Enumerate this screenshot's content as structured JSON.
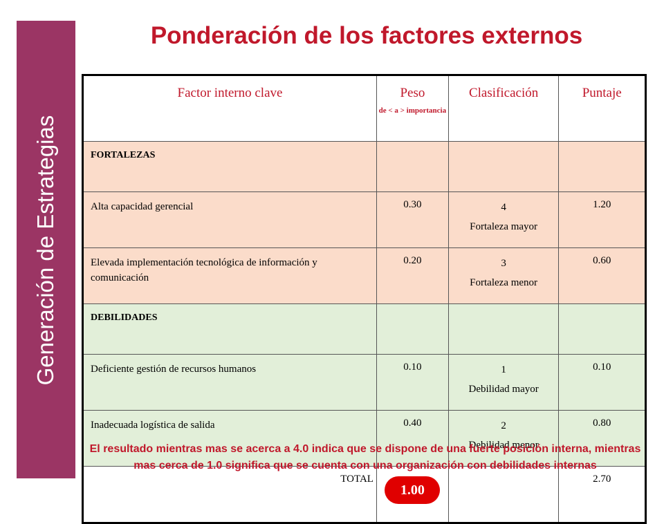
{
  "sidebar": {
    "text": "Generación de Estrategias"
  },
  "title": "Ponderación de los factores externos",
  "table": {
    "headers": {
      "factor": "Factor interno clave",
      "peso": "Peso",
      "peso_sub": "de < a > importancia",
      "clasificacion": "Clasificación",
      "puntaje": "Puntaje"
    },
    "fortalezas_label": "FORTALEZAS",
    "fortalezas": [
      {
        "factor": "Alta capacidad gerencial",
        "peso": "0.30",
        "clas_num": "4",
        "clas_text": "Fortaleza mayor",
        "puntaje": "1.20"
      },
      {
        "factor": "Elevada implementación tecnológica de información y comunicación",
        "peso": "0.20",
        "clas_num": "3",
        "clas_text": "Fortaleza menor",
        "puntaje": "0.60"
      }
    ],
    "debilidades_label": "DEBILIDADES",
    "debilidades": [
      {
        "factor": "Deficiente gestión de recursos humanos",
        "peso": "0.10",
        "clas_num": "1",
        "clas_text": "Debilidad mayor",
        "puntaje": "0.10"
      },
      {
        "factor": "Inadecuada logística de salida",
        "peso": "0.40",
        "clas_num": "2",
        "clas_text": "Debilidad menor",
        "puntaje": "0.80"
      }
    ],
    "total": {
      "label": "TOTAL",
      "peso": "1.00",
      "puntaje": "2.70"
    }
  },
  "footnote": "El resultado mientras mas se acerca a 4.0 indica que se dispone de una fuerte posición interna, mientras mas cerca de 1.0 significa que se cuenta con una organización con debilidades internas",
  "colors": {
    "sidebar": "#9b3564",
    "title": "#c0182b",
    "fortalezas_bg": "#fbdcca",
    "debilidades_bg": "#e2efd9",
    "badge": "#e00000"
  }
}
